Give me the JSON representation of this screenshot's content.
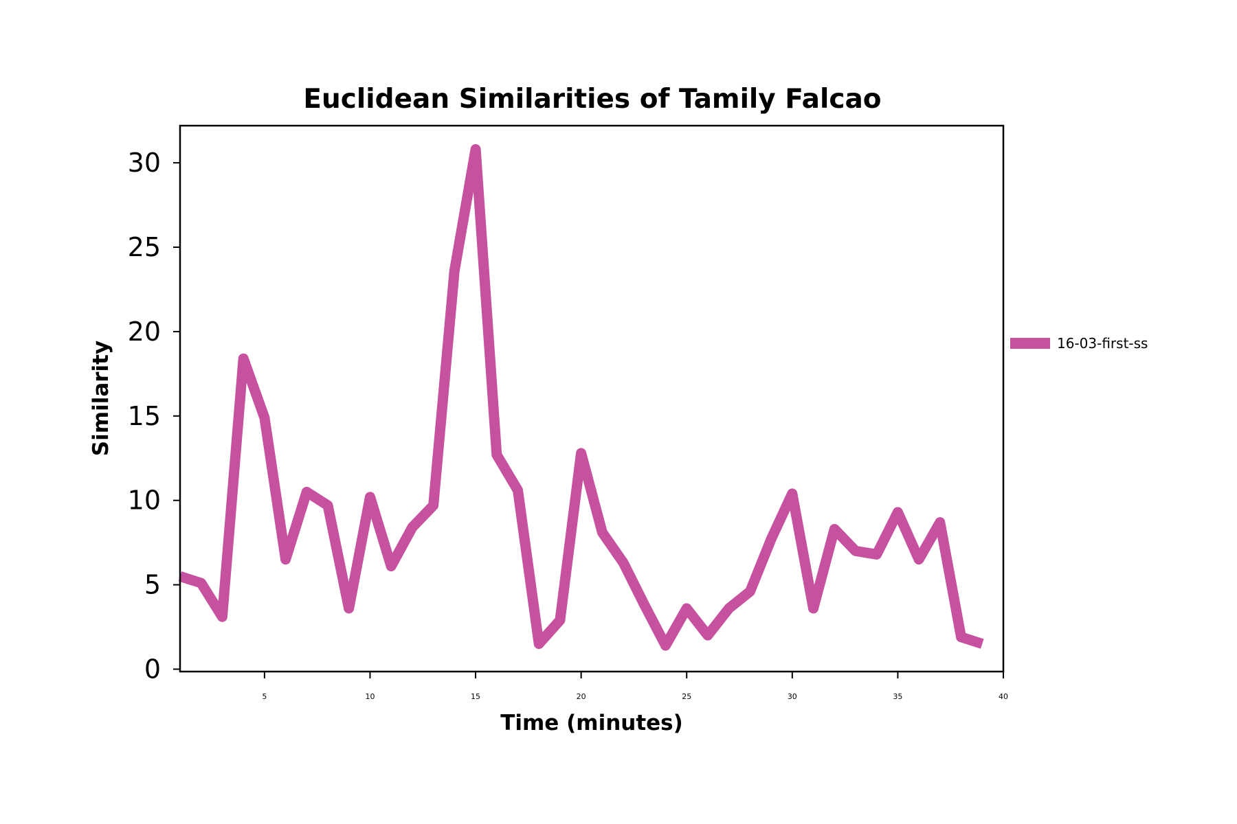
{
  "chart_data": {
    "type": "line",
    "title": "Euclidean Similarities of Tamily Falcao",
    "xlabel": "Time (minutes)",
    "ylabel": "Similarity",
    "xlim": [
      1,
      40
    ],
    "ylim": [
      0,
      32
    ],
    "xticks": [
      5,
      10,
      15,
      20,
      25,
      30,
      35,
      40
    ],
    "yticks": [
      0,
      5,
      10,
      15,
      20,
      25,
      30
    ],
    "grid": false,
    "legend_position": "right",
    "series": [
      {
        "name": "16-03-first-ss",
        "color": "#c5519f",
        "x": [
          1,
          2,
          3,
          4,
          5,
          6,
          7,
          8,
          9,
          10,
          11,
          12,
          13,
          14,
          15,
          16,
          17,
          18,
          19,
          20,
          21,
          22,
          23,
          24,
          25,
          26,
          27,
          28,
          29,
          30,
          31,
          32,
          33,
          34,
          35,
          36,
          37,
          38,
          39
        ],
        "y": [
          5.5,
          5.1,
          3.1,
          18.4,
          14.9,
          6.5,
          10.5,
          9.7,
          3.6,
          10.2,
          6.1,
          8.4,
          9.7,
          23.6,
          30.8,
          12.7,
          10.6,
          1.5,
          2.9,
          12.8,
          8.1,
          6.3,
          3.8,
          1.4,
          3.6,
          2.0,
          3.6,
          4.6,
          7.7,
          10.4,
          3.6,
          8.3,
          7.0,
          6.8,
          9.3,
          6.5,
          8.7,
          1.9,
          1.5
        ]
      }
    ]
  }
}
